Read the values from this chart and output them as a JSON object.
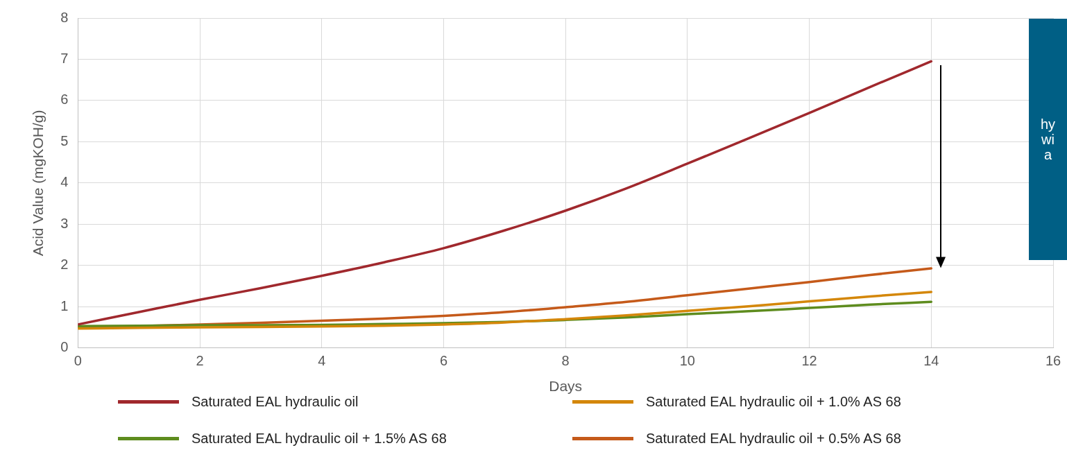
{
  "chart_data": {
    "type": "line",
    "xlabel": "Days",
    "ylabel": "Acid Value (mgKOH/g)",
    "x": [
      0,
      1,
      2,
      3,
      4,
      5,
      6,
      7,
      8,
      9,
      10,
      11,
      12,
      13,
      14
    ],
    "series": [
      {
        "name": "Saturated EAL hydraulic oil",
        "color": "#a0282d",
        "values": [
          0.57,
          0.87,
          1.17,
          1.45,
          1.75,
          2.07,
          2.42,
          2.85,
          3.33,
          3.87,
          4.47,
          5.08,
          5.7,
          6.33,
          6.95
        ]
      },
      {
        "name": "Saturated EAL hydraulic oil + 1.0% AS 68",
        "color": "#d4870a",
        "values": [
          0.47,
          0.49,
          0.5,
          0.51,
          0.52,
          0.54,
          0.57,
          0.62,
          0.7,
          0.79,
          0.9,
          1.01,
          1.13,
          1.25,
          1.36
        ]
      },
      {
        "name": "Saturated EAL hydraulic oil + 1.5% AS 68",
        "color": "#5e8c1e",
        "values": [
          0.53,
          0.54,
          0.55,
          0.55,
          0.56,
          0.58,
          0.6,
          0.63,
          0.68,
          0.74,
          0.82,
          0.89,
          0.97,
          1.05,
          1.12
        ]
      },
      {
        "name": "Saturated EAL hydraulic oil + 0.5% AS 68",
        "color": "#c55a1a",
        "values": [
          0.5,
          0.53,
          0.57,
          0.61,
          0.66,
          0.71,
          0.78,
          0.87,
          0.99,
          1.12,
          1.28,
          1.44,
          1.6,
          1.77,
          1.93
        ]
      }
    ],
    "xlim": [
      0,
      16
    ],
    "xticks": [
      0,
      2,
      4,
      6,
      8,
      10,
      12,
      14,
      16
    ],
    "ylim": [
      0,
      8
    ],
    "yticks": [
      0,
      1,
      2,
      3,
      4,
      5,
      6,
      7,
      8
    ],
    "grid": true,
    "legend": "bottom",
    "marker": "none",
    "line_style": "solid",
    "annotations": [
      "hy",
      "wi",
      "a"
    ]
  }
}
